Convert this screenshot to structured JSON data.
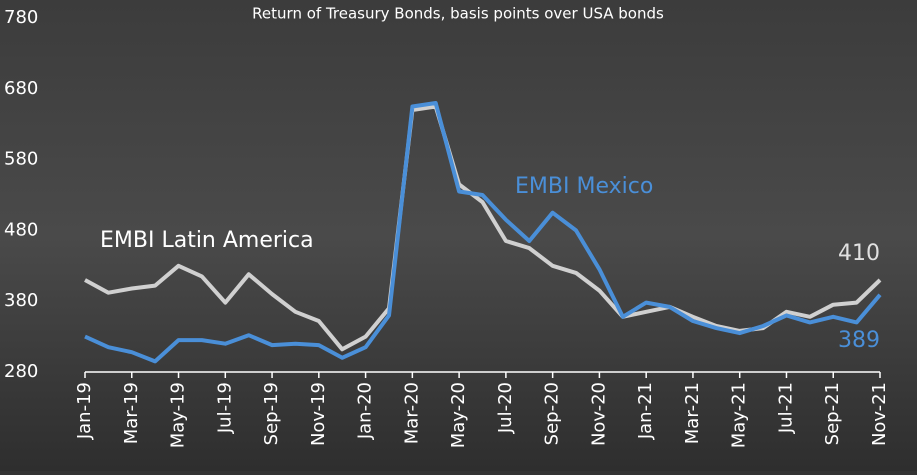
{
  "chart_data": {
    "type": "line",
    "title": "Return of Treasury Bonds, basis points over USA bonds",
    "categories": [
      "Jan-19",
      null,
      "Mar-19",
      null,
      "May-19",
      null,
      "Jul-19",
      null,
      "Sep-19",
      null,
      "Nov-19",
      null,
      "Jan-20",
      null,
      "Mar-20",
      null,
      "May-20",
      null,
      "Jul-20",
      null,
      "Sep-20",
      null,
      "Nov-20",
      null,
      "Jan-21",
      null,
      "Mar-21",
      null,
      "May-21",
      null,
      "Jul-21",
      null,
      "Sep-21",
      null,
      "Nov-21"
    ],
    "series": [
      {
        "name": "EMBI Latin America",
        "color": "#d0d0d0",
        "values": [
          410,
          392,
          398,
          402,
          430,
          415,
          378,
          418,
          390,
          365,
          352,
          312,
          330,
          370,
          650,
          655,
          545,
          520,
          465,
          455,
          430,
          420,
          395,
          358,
          365,
          372,
          358,
          345,
          338,
          342,
          365,
          358,
          375,
          378,
          410
        ]
      },
      {
        "name": "EMBI Mexico",
        "color": "#4a8fd8",
        "values": [
          330,
          315,
          308,
          295,
          325,
          325,
          320,
          332,
          318,
          320,
          318,
          300,
          315,
          360,
          655,
          660,
          535,
          530,
          495,
          465,
          505,
          480,
          425,
          358,
          378,
          372,
          352,
          342,
          335,
          345,
          360,
          350,
          358,
          350,
          389
        ]
      }
    ],
    "ylim": [
      280,
      780
    ],
    "yticks": [
      280,
      380,
      480,
      580,
      680,
      780
    ]
  }
}
